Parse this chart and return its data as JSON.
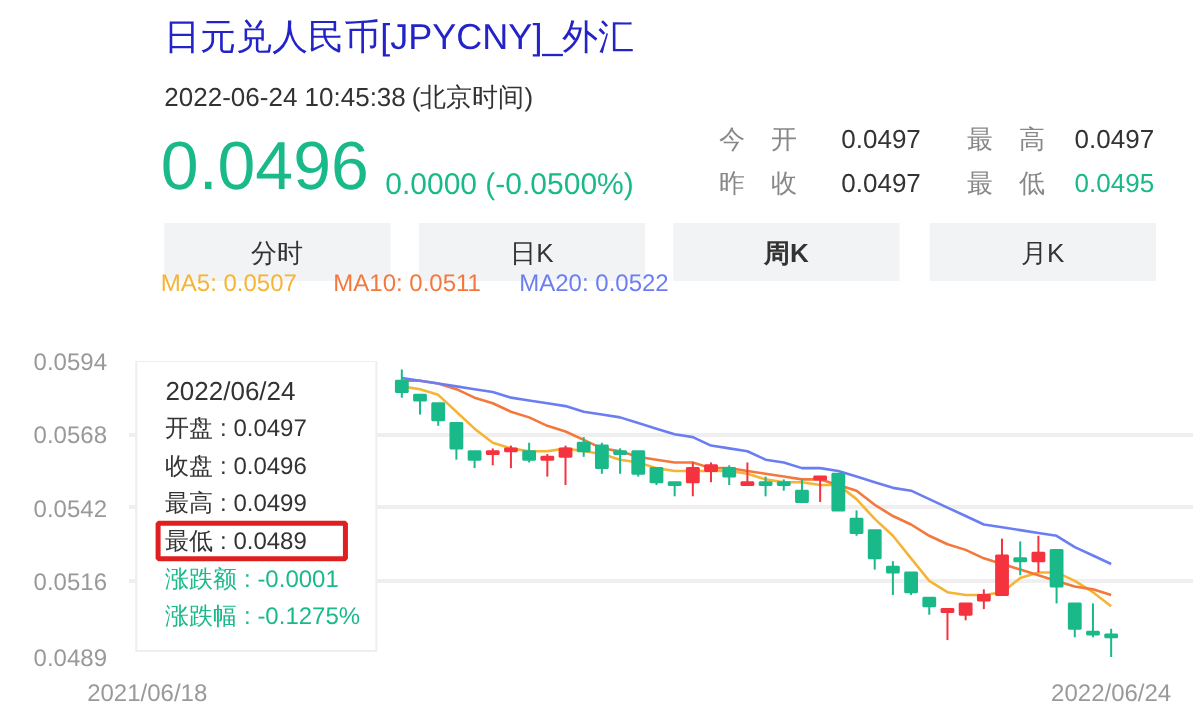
{
  "chart_data": {
    "type": "candlestick",
    "title": "日元兑人民币[JPYCNY]_外汇",
    "categories": [
      "2021/06/18",
      null,
      null,
      null,
      null,
      null,
      null,
      null,
      null,
      null,
      null,
      null,
      null,
      null,
      null,
      null,
      null,
      null,
      null,
      null,
      null,
      null,
      null,
      null,
      null,
      null,
      null,
      null,
      null,
      null,
      null,
      null,
      null,
      null,
      null,
      null,
      null,
      null,
      null,
      null,
      null,
      null,
      null,
      null,
      null,
      null,
      null,
      null,
      null,
      null,
      null,
      null,
      null,
      "2022/06/24"
    ],
    "ohlc": [
      null,
      null,
      null,
      null,
      null,
      null,
      null,
      null,
      null,
      null,
      null,
      null,
      null,
      null,
      [
        0.0587,
        0.0591,
        0.0581,
        0.0583
      ],
      [
        0.0582,
        0.0582,
        0.0575,
        0.058
      ],
      [
        0.0579,
        0.0579,
        0.0571,
        0.0573
      ],
      [
        0.0572,
        0.0572,
        0.0559,
        0.0563
      ],
      [
        0.0562,
        0.0562,
        0.0556,
        0.0559
      ],
      [
        0.0561,
        0.0563,
        0.0557,
        0.0562
      ],
      [
        0.0562,
        0.0564,
        0.0556,
        0.0563
      ],
      [
        0.0562,
        0.0565,
        0.0558,
        0.0559
      ],
      [
        0.0559,
        0.0561,
        0.0553,
        0.056
      ],
      [
        0.056,
        0.0564,
        0.055,
        0.0563
      ],
      [
        0.0565,
        0.0567,
        0.056,
        0.0562
      ],
      [
        0.0564,
        0.0565,
        0.0554,
        0.0556
      ],
      [
        0.0562,
        0.0563,
        0.0554,
        0.0561
      ],
      [
        0.0562,
        0.0562,
        0.0553,
        0.0554
      ],
      [
        0.0556,
        0.0556,
        0.055,
        0.0551
      ],
      [
        0.0551,
        0.0551,
        0.0546,
        0.055
      ],
      [
        0.0551,
        0.0558,
        0.0546,
        0.0556
      ],
      [
        0.0555,
        0.0558,
        0.0551,
        0.0557
      ],
      [
        0.0556,
        0.0557,
        0.055,
        0.0553
      ],
      [
        0.055,
        0.0558,
        0.055,
        0.0551
      ],
      [
        0.0551,
        0.0553,
        0.0546,
        0.055
      ],
      [
        0.0551,
        0.0552,
        0.0548,
        0.055
      ],
      [
        0.0548,
        0.0552,
        0.0544,
        0.0544
      ],
      [
        0.0552,
        0.0553,
        0.0544,
        0.0553
      ],
      [
        0.0554,
        0.0554,
        0.0541,
        0.0541
      ],
      [
        0.0538,
        0.0541,
        0.0532,
        0.0533
      ],
      [
        0.0534,
        0.0534,
        0.052,
        0.0524
      ],
      [
        0.0521,
        0.0523,
        0.0511,
        0.0519
      ],
      [
        0.0519,
        0.0519,
        0.0511,
        0.0512
      ],
      [
        0.051,
        0.051,
        0.0504,
        0.0507
      ],
      [
        0.0505,
        0.0506,
        0.0495,
        0.0506
      ],
      [
        0.0504,
        0.0508,
        0.0502,
        0.0508
      ],
      [
        0.0509,
        0.0513,
        0.0506,
        0.0511
      ],
      [
        0.0511,
        0.0531,
        0.0511,
        0.0525
      ],
      [
        0.0524,
        0.053,
        0.0518,
        0.0523
      ],
      [
        0.0523,
        0.0532,
        0.0519,
        0.0526
      ],
      [
        0.0527,
        0.0527,
        0.0508,
        0.0514
      ],
      [
        0.0508,
        0.0508,
        0.0496,
        0.0499
      ],
      [
        0.0498,
        0.0508,
        0.0496,
        0.0497
      ],
      [
        0.0497,
        0.0499,
        0.0489,
        0.0496
      ]
    ],
    "colors": [
      null,
      null,
      null,
      null,
      null,
      null,
      null,
      null,
      null,
      null,
      null,
      null,
      null,
      null,
      "#1ab98a",
      "#1ab98a",
      "#1ab98a",
      "#1ab98a",
      "#1ab98a",
      "#f5333f",
      "#f5333f",
      "#1ab98a",
      "#f5333f",
      "#f5333f",
      "#1ab98a",
      "#1ab98a",
      "#1ab98a",
      "#1ab98a",
      "#1ab98a",
      "#1ab98a",
      "#f5333f",
      "#f5333f",
      "#1ab98a",
      "#f5333f",
      "#1ab98a",
      "#1ab98a",
      "#1ab98a",
      "#f5333f",
      "#1ab98a",
      "#1ab98a",
      "#1ab98a",
      "#1ab98a",
      "#1ab98a",
      "#1ab98a",
      "#f5333f",
      "#f5333f",
      "#f5333f",
      "#f5333f",
      "#1ab98a",
      "#f5333f",
      "#1ab98a",
      "#1ab98a",
      "#1ab98a",
      "#1ab98a"
    ],
    "series": [
      {
        "type": "line",
        "name": "MA5: 0.0507",
        "color": "#f6b434",
        "values": [
          null,
          null,
          null,
          null,
          null,
          null,
          null,
          null,
          null,
          null,
          null,
          null,
          null,
          null,
          0.0585,
          0.0584,
          0.0582,
          0.0576,
          0.057,
          0.0565,
          0.0563,
          0.0562,
          0.0562,
          0.0563,
          0.0562,
          0.0561,
          0.0559,
          0.0558,
          0.0556,
          0.0555,
          0.0555,
          0.0555,
          0.0555,
          0.0554,
          0.0552,
          0.0551,
          0.0551,
          0.055,
          0.055,
          0.0545,
          0.0538,
          0.0532,
          0.0524,
          0.0516,
          0.0512,
          0.0511,
          0.0511,
          0.0512,
          0.0517,
          0.0519,
          0.0519,
          0.0516,
          0.0512,
          0.0507
        ]
      },
      {
        "type": "line",
        "name": "MA10: 0.0511",
        "color": "#f4783c",
        "values": [
          null,
          null,
          null,
          null,
          null,
          null,
          null,
          null,
          null,
          null,
          null,
          null,
          null,
          null,
          0.0587,
          0.0587,
          0.0586,
          0.0584,
          0.0581,
          0.0579,
          0.0576,
          0.0574,
          0.0571,
          0.0569,
          0.0566,
          0.0563,
          0.0562,
          0.056,
          0.0559,
          0.0558,
          0.0558,
          0.0556,
          0.0556,
          0.0555,
          0.0554,
          0.0553,
          0.0552,
          0.0552,
          0.055,
          0.0548,
          0.0543,
          0.0539,
          0.0536,
          0.0532,
          0.0529,
          0.0527,
          0.0524,
          0.0522,
          0.052,
          0.0518,
          0.0516,
          0.0514,
          0.0513,
          0.0511
        ]
      },
      {
        "type": "line",
        "name": "MA20: 0.0522",
        "color": "#6b7df2",
        "values": [
          null,
          null,
          null,
          null,
          null,
          null,
          null,
          null,
          null,
          null,
          null,
          null,
          null,
          null,
          0.0588,
          0.0587,
          0.0586,
          0.0585,
          0.0584,
          0.0583,
          0.0581,
          0.058,
          0.0579,
          0.0578,
          0.0576,
          0.0575,
          0.0574,
          0.0572,
          0.057,
          0.0568,
          0.0567,
          0.0564,
          0.0563,
          0.0562,
          0.0559,
          0.0558,
          0.0556,
          0.0556,
          0.0555,
          0.0553,
          0.0551,
          0.0549,
          0.0548,
          0.0545,
          0.0542,
          0.0539,
          0.0536,
          0.0535,
          0.0534,
          0.0533,
          0.0532,
          0.0528,
          0.0525,
          0.0522
        ]
      }
    ],
    "ylim": [
      0.0489,
      0.0594
    ],
    "yticks": [
      0.0594,
      0.0568,
      0.0542,
      0.0516,
      0.0489
    ],
    "grid": "y",
    "legend": "top left",
    "annotations": [
      "2022-06-24 10:45:38",
      "(北京时间)",
      "0.0496",
      "0.0000 (-0.0500%)",
      "今　开",
      "0.0497",
      "最　高",
      "0.0497",
      "昨　收",
      "0.0497",
      "最　低",
      "0.0495",
      "分时",
      "日K",
      "周K",
      "月K",
      "2022/06/24",
      "开盘 : 0.0497",
      "收盘 : 0.0496",
      "最高 : 0.0499",
      "最低 : 0.0489",
      "涨跌额 : -0.0001",
      "涨跌幅 : -0.1275%"
    ]
  }
}
